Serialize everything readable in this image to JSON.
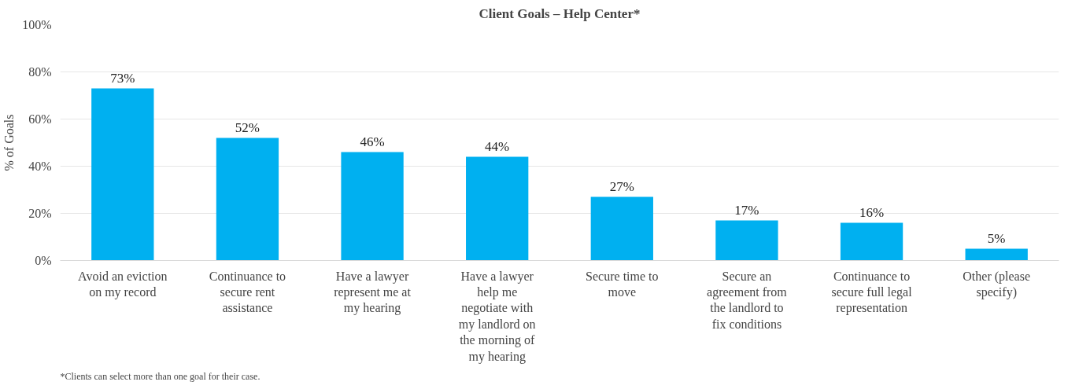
{
  "chart_data": {
    "type": "bar",
    "title": "Client Goals – Help Center*",
    "ylabel": "% of Goals",
    "categories": [
      "Avoid an eviction\non my record",
      "Continuance to\nsecure rent\nassistance",
      "Have a lawyer\nrepresent me at\nmy hearing",
      "Have a lawyer\nhelp me\nnegotiate with\nmy landlord on\nthe morning of\nmy hearing",
      "Secure time to\nmove",
      "Secure an\nagreement from\nthe landlord to\nfix conditions",
      "Continuance to\nsecure full legal\nrepresentation",
      "Other (please\nspecify)"
    ],
    "values": [
      73,
      52,
      46,
      44,
      27,
      17,
      16,
      5
    ],
    "value_labels": [
      "73%",
      "52%",
      "46%",
      "44%",
      "27%",
      "17%",
      "16%",
      "5%"
    ],
    "color": "#00b0f0",
    "ylim": [
      0,
      100
    ],
    "yticks": [
      {
        "value": 0,
        "label": "0%"
      },
      {
        "value": 20,
        "label": "20%"
      },
      {
        "value": 40,
        "label": "40%"
      },
      {
        "value": 60,
        "label": "60%"
      },
      {
        "value": 80,
        "label": "80%"
      },
      {
        "value": 100,
        "label": "100%"
      }
    ],
    "grid": "y",
    "annotations": [
      "*Clients can select more than one goal for their case."
    ]
  }
}
